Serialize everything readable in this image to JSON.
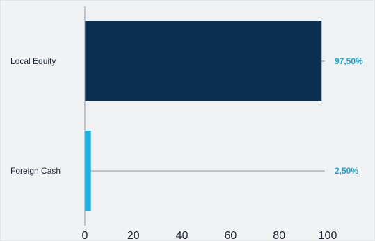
{
  "chart_data": {
    "type": "bar",
    "orientation": "horizontal",
    "categories": [
      "Local Equity",
      "Foreign Cash"
    ],
    "values": [
      97.5,
      2.5
    ],
    "value_labels": [
      "97,50%",
      "2,50%"
    ],
    "xlim": [
      0,
      100
    ],
    "x_ticks": [
      0,
      20,
      40,
      60,
      80,
      100
    ],
    "title": "",
    "xlabel": "",
    "ylabel": "",
    "grid": false,
    "legend": "none",
    "colors": [
      "#0b3050",
      "#1bb3e3"
    ],
    "label_color": "#1ba3d6",
    "axis_color": "#8a9aa5"
  }
}
